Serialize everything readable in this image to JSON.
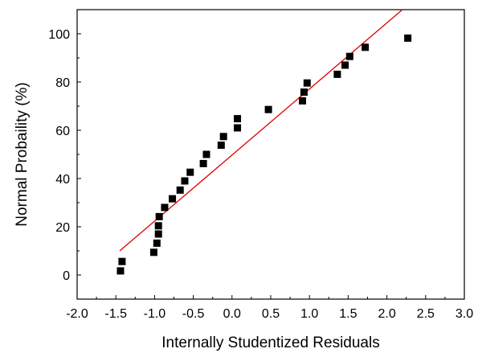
{
  "chart_data": {
    "type": "scatter",
    "title": "",
    "xlabel": "Internally Studentized Residuals",
    "ylabel": "Normal Probaility (%)",
    "xlim": [
      -2.0,
      3.0
    ],
    "ylim": [
      -10,
      110
    ],
    "x_ticks": [
      -2.0,
      -1.5,
      -1.0,
      -0.5,
      0.0,
      0.5,
      1.0,
      1.5,
      2.0,
      2.5,
      3.0
    ],
    "x_tick_labels": [
      "-2.0",
      "-1.5",
      "-1.0",
      "-0.5",
      "0.0",
      "0.5",
      "1.0",
      "1.5",
      "2.0",
      "2.5",
      "3.0"
    ],
    "y_ticks": [
      0,
      20,
      40,
      60,
      80,
      100
    ],
    "y_tick_labels": [
      "0",
      "20",
      "40",
      "60",
      "80",
      "100"
    ],
    "grid": false,
    "legend": "none",
    "marker_color": "#000000",
    "line_color": "#e00000",
    "reference_line": {
      "x": [
        -1.45,
        2.2
      ],
      "y": [
        10,
        110
      ]
    },
    "points": [
      {
        "x": -1.44,
        "y": 1.7
      },
      {
        "x": -1.42,
        "y": 5.6
      },
      {
        "x": -1.01,
        "y": 9.4
      },
      {
        "x": -0.97,
        "y": 13.2
      },
      {
        "x": -0.95,
        "y": 17.0
      },
      {
        "x": -0.95,
        "y": 20.4
      },
      {
        "x": -0.94,
        "y": 24.2
      },
      {
        "x": -0.87,
        "y": 28.0
      },
      {
        "x": -0.77,
        "y": 31.6
      },
      {
        "x": -0.67,
        "y": 35.2
      },
      {
        "x": -0.61,
        "y": 39.0
      },
      {
        "x": -0.54,
        "y": 42.6
      },
      {
        "x": -0.37,
        "y": 46.2
      },
      {
        "x": -0.33,
        "y": 50.0
      },
      {
        "x": -0.14,
        "y": 53.8
      },
      {
        "x": -0.11,
        "y": 57.4
      },
      {
        "x": 0.07,
        "y": 61.0
      },
      {
        "x": 0.07,
        "y": 64.8
      },
      {
        "x": 0.47,
        "y": 68.6
      },
      {
        "x": 0.91,
        "y": 72.2
      },
      {
        "x": 0.93,
        "y": 75.8
      },
      {
        "x": 0.97,
        "y": 79.6
      },
      {
        "x": 1.36,
        "y": 83.2
      },
      {
        "x": 1.46,
        "y": 87.0
      },
      {
        "x": 1.52,
        "y": 90.6
      },
      {
        "x": 1.72,
        "y": 94.4
      },
      {
        "x": 2.27,
        "y": 98.2
      }
    ]
  }
}
